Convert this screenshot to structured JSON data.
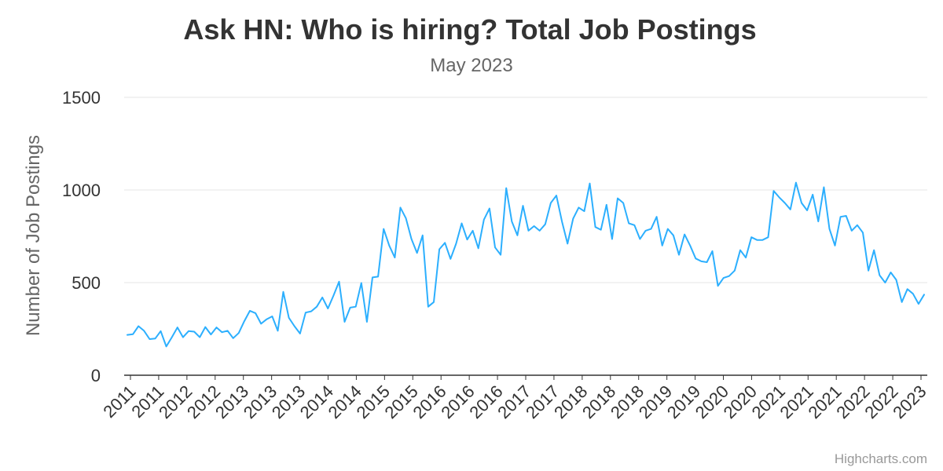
{
  "chart_data": {
    "type": "line",
    "title": "Ask HN: Who is hiring? Total Job Postings",
    "subtitle": "May 2023",
    "xlabel": "",
    "ylabel": "Number of Job Postings",
    "ylim": [
      0,
      1500
    ],
    "yticks": [
      0,
      500,
      1000,
      1500
    ],
    "grid": true,
    "legend": false,
    "series_color": "#2caffe",
    "tick_labels": [
      "2011",
      "2011",
      "2012",
      "2012",
      "2013",
      "2013",
      "2013",
      "2014",
      "2014",
      "2015",
      "2015",
      "2016",
      "2016",
      "2016",
      "2017",
      "2017",
      "2018",
      "2018",
      "2018",
      "2019",
      "2019",
      "2020",
      "2020",
      "2021",
      "2021",
      "2021",
      "2022",
      "2022",
      "2023"
    ],
    "series": [
      {
        "values": [
          218,
          221,
          265,
          240,
          195,
          198,
          238,
          155,
          205,
          258,
          205,
          238,
          235,
          205,
          260,
          220,
          258,
          232,
          240,
          200,
          228,
          292,
          348,
          335,
          278,
          302,
          318,
          240,
          450,
          310,
          265,
          225,
          338,
          345,
          370,
          420,
          360,
          430,
          505,
          288,
          365,
          370,
          498,
          288,
          528,
          532,
          790,
          700,
          635,
          905,
          848,
          735,
          660,
          755,
          370,
          395,
          680,
          715,
          628,
          710,
          820,
          732,
          780,
          685,
          840,
          900,
          690,
          650,
          1010,
          830,
          755,
          915,
          780,
          805,
          780,
          815,
          930,
          970,
          830,
          710,
          845,
          905,
          885,
          1035,
          800,
          785,
          920,
          735,
          955,
          930,
          820,
          810,
          735,
          780,
          790,
          855,
          700,
          790,
          755,
          650,
          760,
          700,
          630,
          615,
          610,
          670,
          482,
          525,
          535,
          565,
          675,
          635,
          745,
          730,
          730,
          745,
          995,
          960,
          930,
          895,
          1040,
          930,
          890,
          975,
          830,
          1015,
          790,
          700,
          855,
          860,
          780,
          810,
          770,
          565,
          675,
          540,
          500,
          555,
          515,
          395,
          465,
          440,
          385,
          435
        ]
      }
    ]
  },
  "credit": "Highcharts.com"
}
